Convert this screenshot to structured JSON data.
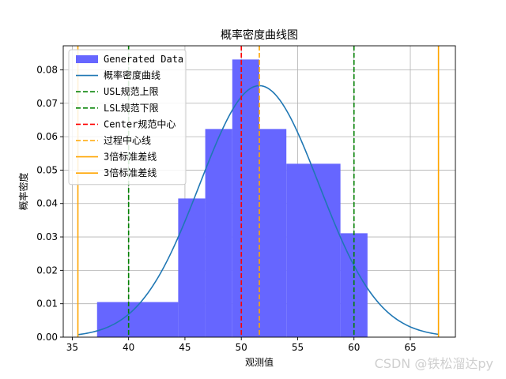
{
  "chart_data": {
    "type": "bar",
    "title": "概率密度曲线图",
    "xlabel": "观测值",
    "ylabel": "概率密度",
    "xlim": [
      34.2,
      69.0
    ],
    "ylim": [
      0,
      0.0872
    ],
    "xticks": [
      35,
      40,
      45,
      50,
      55,
      60,
      65
    ],
    "yticks": [
      0.0,
      0.01,
      0.02,
      0.03,
      0.04,
      0.05,
      0.06,
      0.07,
      0.08
    ],
    "xtick_labels": [
      "35",
      "40",
      "45",
      "50",
      "55",
      "60",
      "65"
    ],
    "ytick_labels": [
      "0.00",
      "0.01",
      "0.02",
      "0.03",
      "0.04",
      "0.05",
      "0.06",
      "0.07",
      "0.08"
    ],
    "grid": true,
    "legend_position": "top-left",
    "histogram": {
      "name": "Generated Data",
      "color": "#6666ff",
      "bins": [
        {
          "x0": 37.2,
          "x1": 44.4,
          "density": 0.0105
        },
        {
          "x0": 44.4,
          "x1": 46.8,
          "density": 0.0415
        },
        {
          "x0": 46.8,
          "x1": 49.2,
          "density": 0.0623
        },
        {
          "x0": 49.2,
          "x1": 51.6,
          "density": 0.0831
        },
        {
          "x0": 51.6,
          "x1": 54.0,
          "density": 0.0623
        },
        {
          "x0": 54.0,
          "x1": 58.8,
          "density": 0.0519
        },
        {
          "x0": 58.8,
          "x1": 61.2,
          "density": 0.0311
        }
      ]
    },
    "pdf_curve": {
      "name": "概率密度曲线",
      "color": "#1f77b4",
      "mean": 51.6,
      "std": 5.3,
      "x_range": [
        35.5,
        67.5
      ]
    },
    "vlines": [
      {
        "name": "USL规范上限",
        "x": 60,
        "color": "#008000",
        "style": "dashed"
      },
      {
        "name": "LSL规范下限",
        "x": 40,
        "color": "#008000",
        "style": "dashed"
      },
      {
        "name": "Center规范中心",
        "x": 50,
        "color": "#ff0000",
        "style": "dashed"
      },
      {
        "name": "过程中心线",
        "x": 51.6,
        "color": "#ffa500",
        "style": "dashed"
      },
      {
        "name": "3倍标准差线",
        "x": 67.5,
        "color": "#ffa500",
        "style": "solid"
      },
      {
        "name": "3倍标准差线",
        "x": 35.5,
        "color": "#ffa500",
        "style": "solid"
      }
    ],
    "legend": [
      {
        "label": "Generated Data",
        "kind": "patch",
        "color": "#6666ff"
      },
      {
        "label": "概率密度曲线",
        "kind": "line",
        "color": "#1f77b4",
        "style": "solid"
      },
      {
        "label": "USL规范上限",
        "kind": "line",
        "color": "#008000",
        "style": "dashed"
      },
      {
        "label": "LSL规范下限",
        "kind": "line",
        "color": "#008000",
        "style": "dashed"
      },
      {
        "label": "Center规范中心",
        "kind": "line",
        "color": "#ff0000",
        "style": "dashed"
      },
      {
        "label": "过程中心线",
        "kind": "line",
        "color": "#ffa500",
        "style": "dashed"
      },
      {
        "label": "3倍标准差线",
        "kind": "line",
        "color": "#ffa500",
        "style": "solid"
      },
      {
        "label": "3倍标准差线",
        "kind": "line",
        "color": "#ffa500",
        "style": "solid"
      }
    ]
  },
  "watermark": "CSDN @铁松溜达py"
}
